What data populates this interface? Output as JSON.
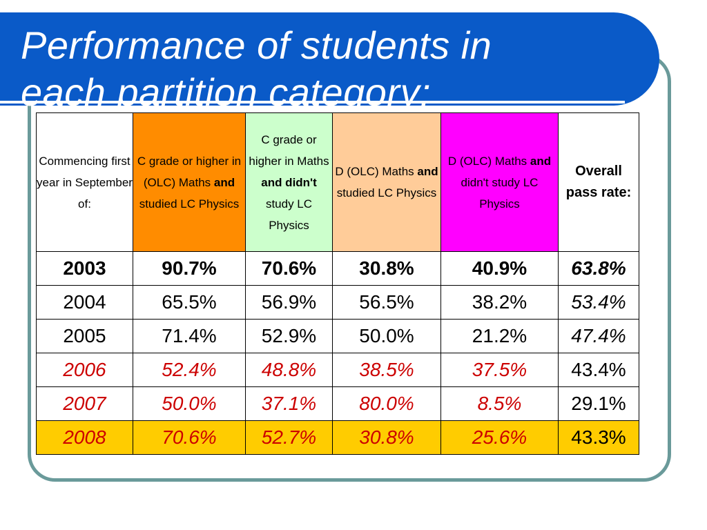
{
  "title": {
    "line1": "Performance of students in",
    "line2": "each partition category:"
  },
  "table": {
    "headers": [
      {
        "parts": [
          {
            "text": "Commencing first year  in September of:",
            "bold": false
          }
        ]
      },
      {
        "parts": [
          {
            "text": "C grade or higher in (OLC) Maths ",
            "bold": false
          },
          {
            "text": "and",
            "bold": true
          },
          {
            "text": " studied LC Physics",
            "bold": false
          }
        ]
      },
      {
        "parts": [
          {
            "text": "C grade or higher in Maths ",
            "bold": false
          },
          {
            "text": "and didn't",
            "bold": true
          },
          {
            "text": " study LC Physics",
            "bold": false
          }
        ]
      },
      {
        "parts": [
          {
            "text": "D (OLC) Maths ",
            "bold": false
          },
          {
            "text": "and",
            "bold": true
          },
          {
            "text": " studied LC Physics",
            "bold": false
          }
        ]
      },
      {
        "parts": [
          {
            "text": "D (OLC) Maths ",
            "bold": false
          },
          {
            "text": "and",
            "bold": true
          },
          {
            "text": " didn't study LC Physics",
            "bold": false
          }
        ]
      },
      {
        "parts": [
          {
            "text": "Overall pass rate:",
            "bold": true
          }
        ]
      }
    ],
    "header_colors": [
      "#ffffff",
      "#ff8c00",
      "#ccffcc",
      "#ffcc99",
      "#ff00ff",
      "#ffffff"
    ],
    "rows": [
      [
        "2003",
        "90.7%",
        "70.6%",
        "30.8%",
        "40.9%",
        "63.8%"
      ],
      [
        "2004",
        "65.5%",
        "56.9%",
        "56.5%",
        "38.2%",
        "53.4%"
      ],
      [
        "2005",
        "71.4%",
        "52.9%",
        "50.0%",
        "21.2%",
        "47.4%"
      ],
      [
        "2006",
        "52.4%",
        "48.8%",
        "38.5%",
        "37.5%",
        "43.4%"
      ],
      [
        "2007",
        "50.0%",
        "37.1%",
        "80.0%",
        "8.5%",
        "29.1%"
      ],
      [
        "2008",
        "70.6%",
        "52.7%",
        "30.8%",
        "25.6%",
        "43.3%"
      ]
    ],
    "highlight_row_color": "#ffcc00",
    "red_text_color": "#cc0000"
  }
}
